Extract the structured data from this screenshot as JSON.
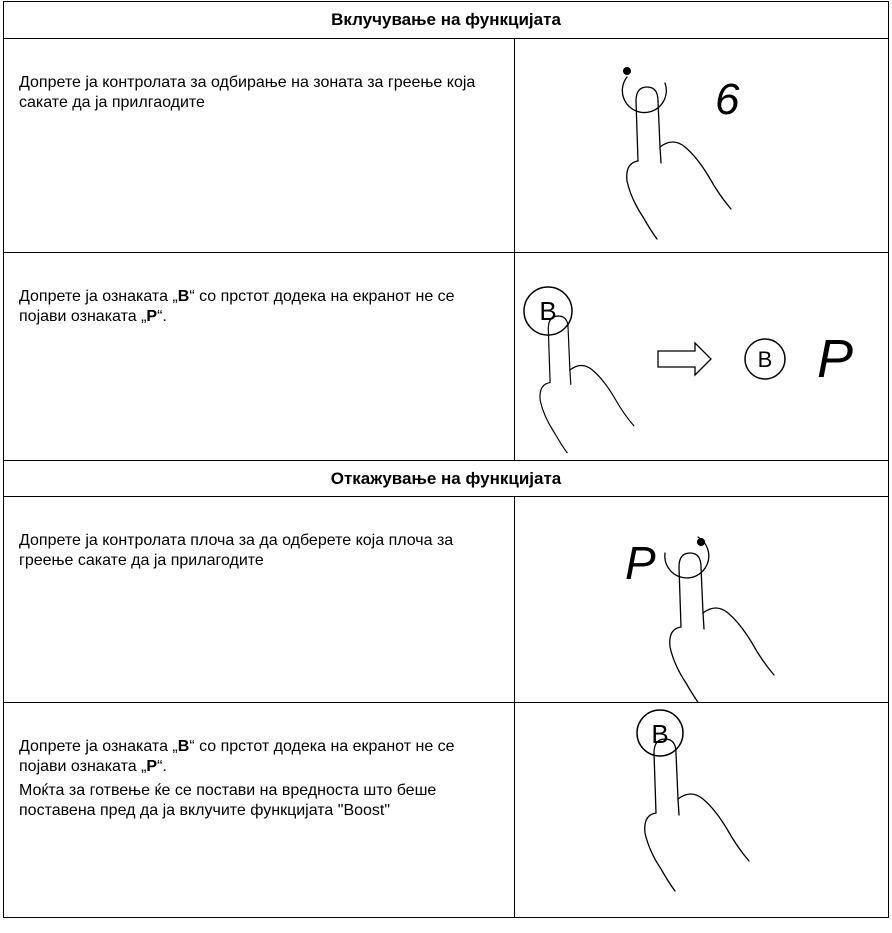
{
  "sections": [
    {
      "title": "Вклучување на функцијата",
      "rows": [
        {
          "paragraphs": [
            [
              "Допрете ја контролата за одбирање на зоната за греење која сакате да ја прилгаодите"
            ]
          ],
          "figure": [
            "6"
          ]
        },
        {
          "paragraphs": [
            [
              "Допрете ја ознаката „",
              "B",
              "“ со прстот додека на екранот не се појави ознаката „",
              "P",
              "“."
            ]
          ],
          "figure": [
            "B",
            "B",
            "P"
          ]
        }
      ]
    },
    {
      "title": "Откажување на функцијата",
      "rows": [
        {
          "paragraphs": [
            [
              "Допрете ја контролата плоча за да одберете која плоча за греење сакате да ја прилагодите"
            ]
          ],
          "figure": [
            "P"
          ]
        },
        {
          "paragraphs": [
            [
              "Допрете ја ознаката „",
              "B",
              "“ со прстот додека на екранот не се појави ознаката „",
              "P",
              "“."
            ],
            [
              "Моќта за готвење ќе се постави на вредноста што беше поставена пред да ја вклучите функцијата \"Boost\""
            ]
          ],
          "figure": [
            "B"
          ]
        }
      ]
    }
  ]
}
